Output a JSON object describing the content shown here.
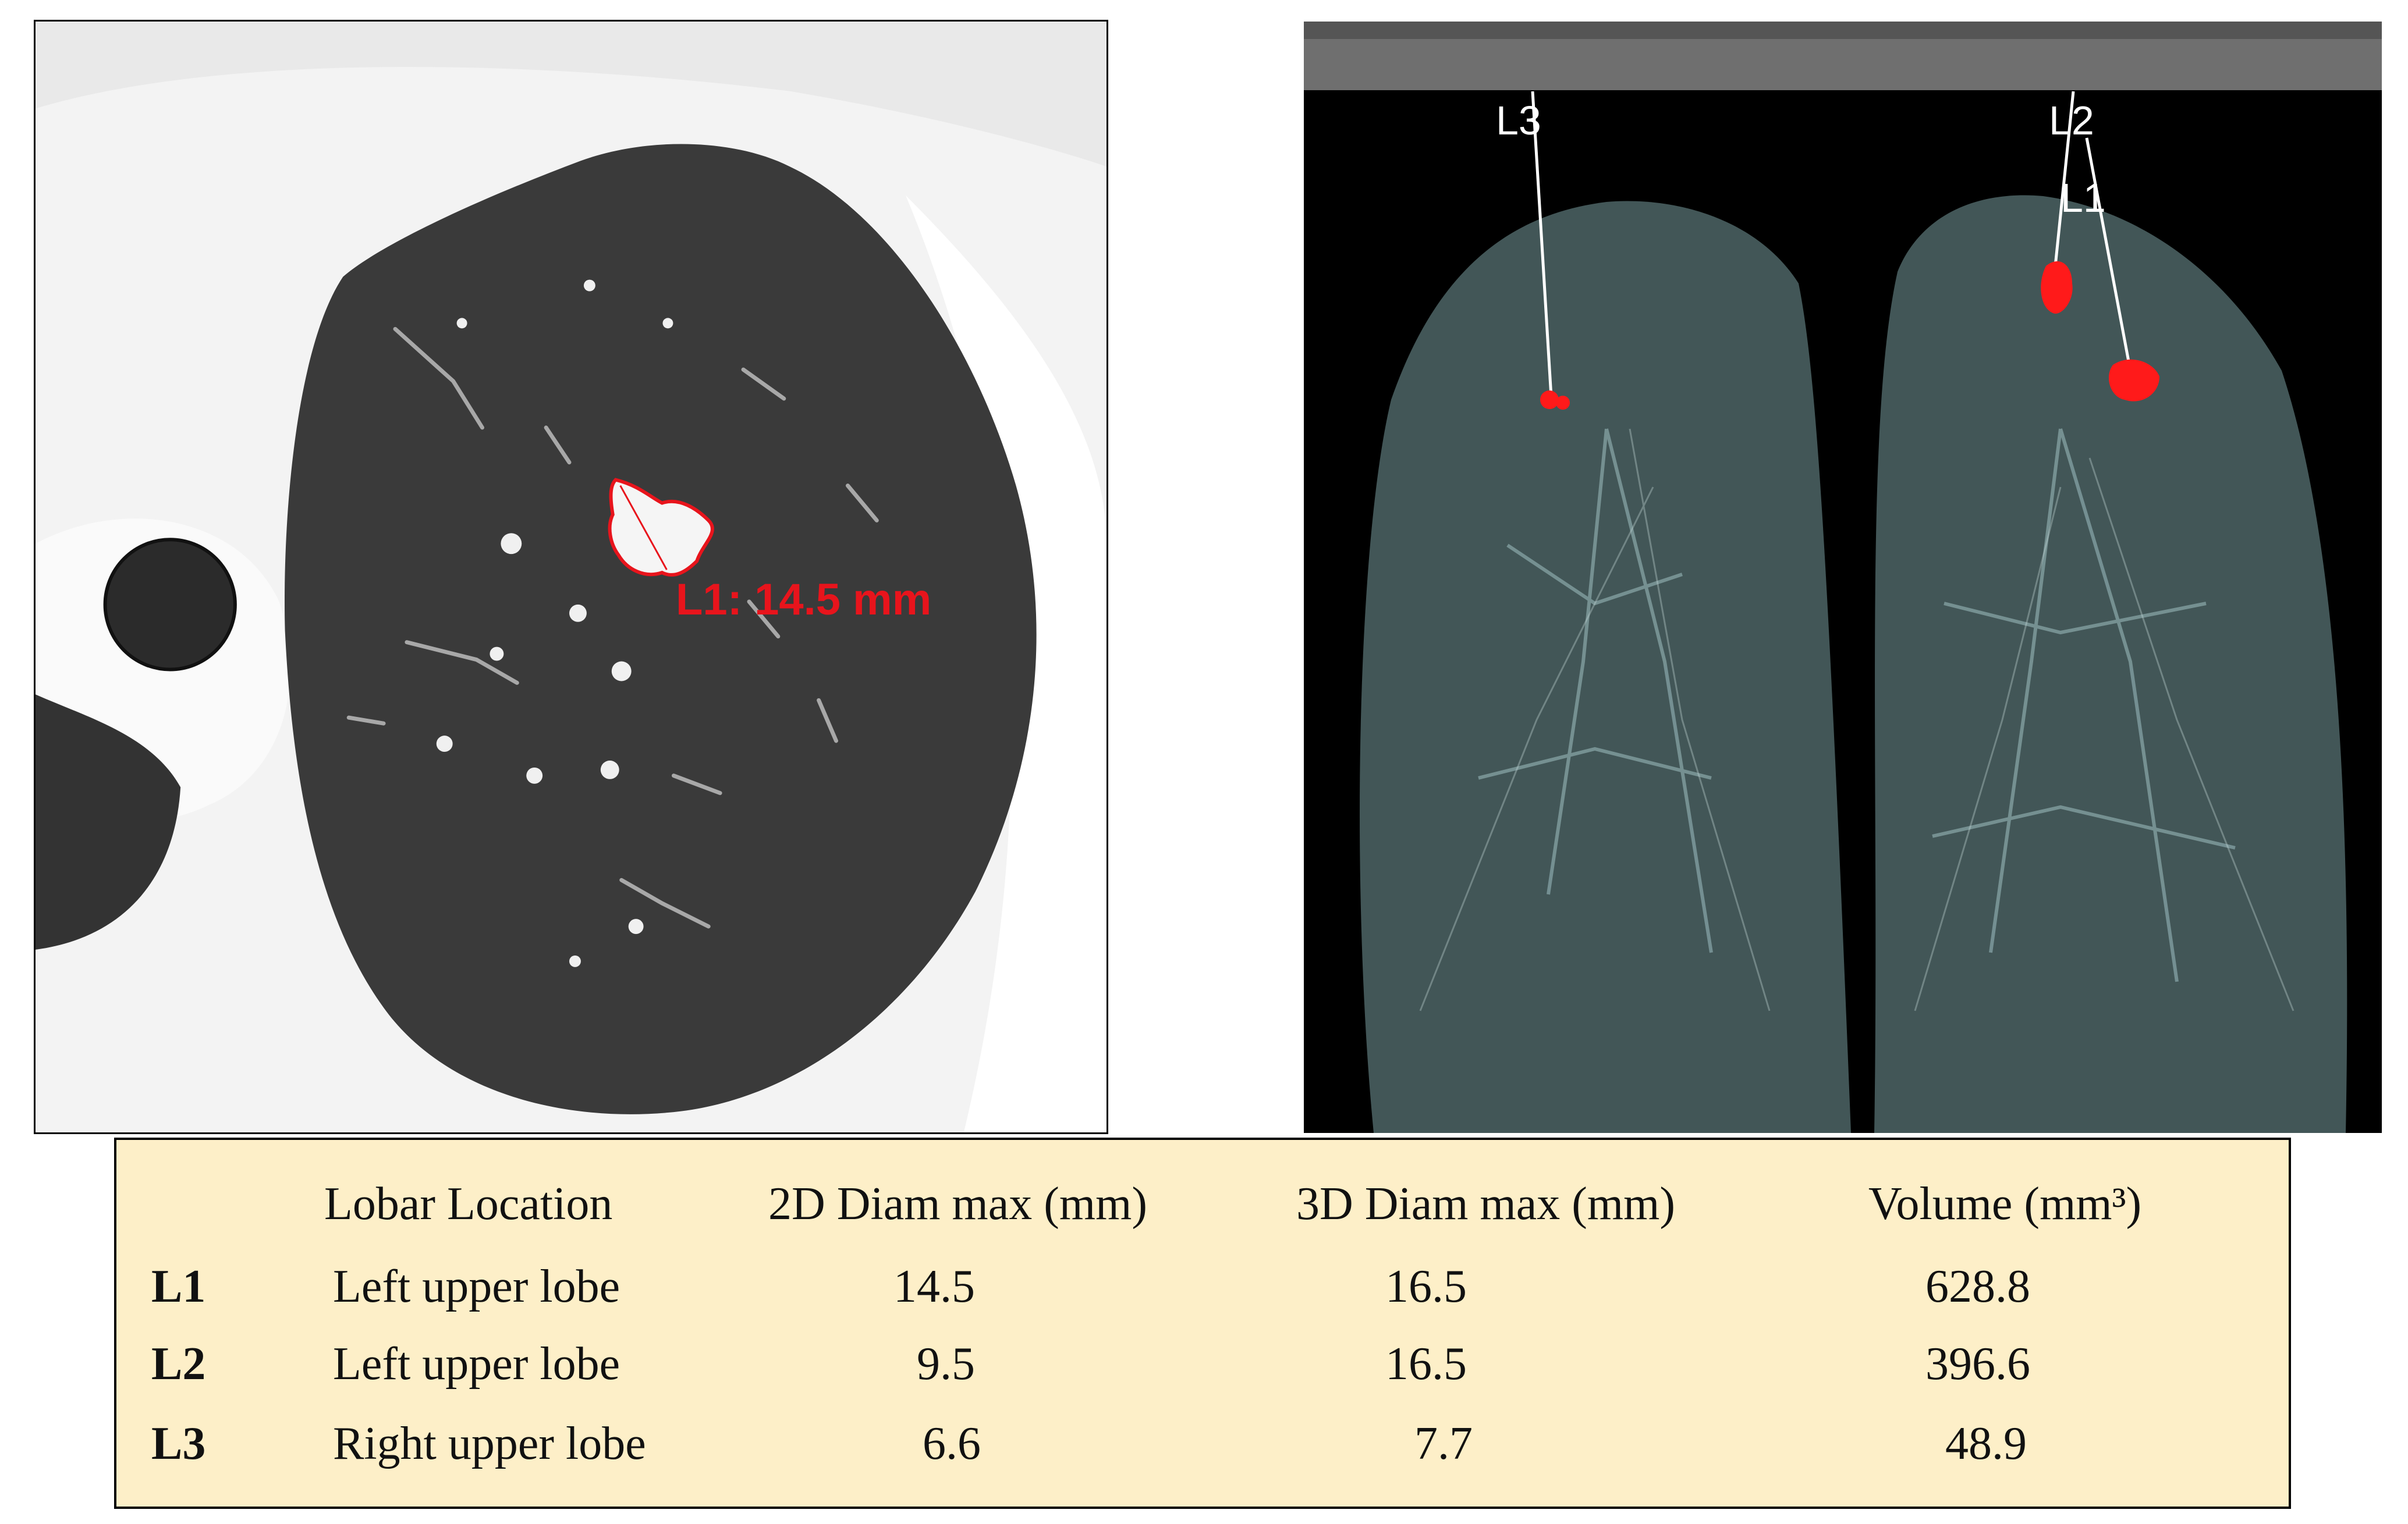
{
  "ct_image": {
    "measurement_label": "L1: 14.5 mm",
    "annotation_color": "#e8141c"
  },
  "render_image": {
    "lesion_labels": [
      "L3",
      "L2",
      "L1"
    ],
    "lesion_color": "#ff1a1a",
    "leader_color": "#ffffff"
  },
  "table": {
    "headers": [
      "",
      "Lobar Location",
      "2D Diam max (mm)",
      "3D Diam max (mm)",
      "Volume (mm³)"
    ],
    "rows": [
      {
        "id": "L1",
        "location": "Left upper lobe",
        "diam2d": "14.5",
        "diam3d": "16.5",
        "volume": "628.8"
      },
      {
        "id": "L2",
        "location": "Left upper lobe",
        "diam2d": "9.5",
        "diam3d": "16.5",
        "volume": "396.6"
      },
      {
        "id": "L3",
        "location": "Right upper lobe",
        "diam2d": "6.6",
        "diam3d": "7.7",
        "volume": "48.9"
      }
    ],
    "background": "#fdefc8"
  }
}
